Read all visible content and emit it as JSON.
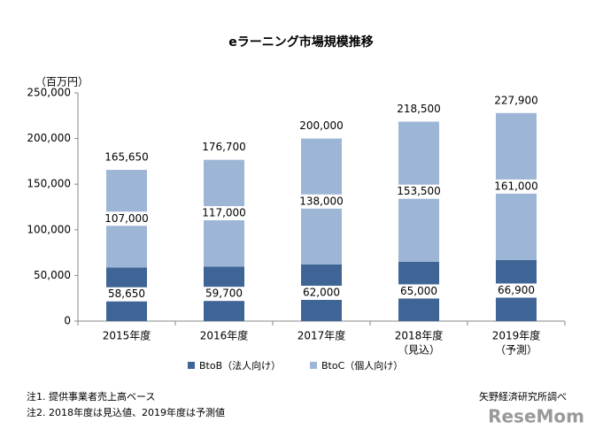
{
  "chart_data": {
    "type": "stacked_bar",
    "title": "eラーニング市場規模推移",
    "y_unit": "（百万円）",
    "categories": [
      "2015年度",
      "2016年度",
      "2017年度",
      "2018年度",
      "2019年度"
    ],
    "category_notes": [
      null,
      null,
      null,
      "（見込）",
      "（予測）"
    ],
    "series": [
      {
        "name": "BtoB（法人向け）",
        "color": "#3f6596",
        "values": [
          58650,
          59700,
          62000,
          65000,
          66900
        ],
        "value_labels": [
          "58,650",
          "59,700",
          "62,000",
          "65,000",
          "66,900"
        ]
      },
      {
        "name": "BtoC（個人向け）",
        "color": "#9db6d6",
        "values": [
          107000,
          117000,
          138000,
          153500,
          161000
        ],
        "value_labels": [
          "107,000",
          "117,000",
          "138,000",
          "153,500",
          "161,000"
        ]
      }
    ],
    "total_labels": [
      "165,650",
      "176,700",
      "200,000",
      "218,500",
      "227,900"
    ],
    "ylim": [
      0,
      250000
    ],
    "yticks": [
      0,
      {
        "value": 50000,
        "label": "50,000"
      },
      {
        "value": 100000,
        "label": "100,000"
      },
      {
        "value": 150000,
        "label": "150,000"
      },
      {
        "value": 200000,
        "label": "200,000"
      },
      {
        "value": 250000,
        "label": "250,000"
      }
    ],
    "notes": [
      "注1. 提供事業者売上高ベース",
      "注2. 2018年度は見込値、2019年度は予測値"
    ],
    "source": "矢野経済研究所調べ",
    "watermark": "ReseMom"
  }
}
